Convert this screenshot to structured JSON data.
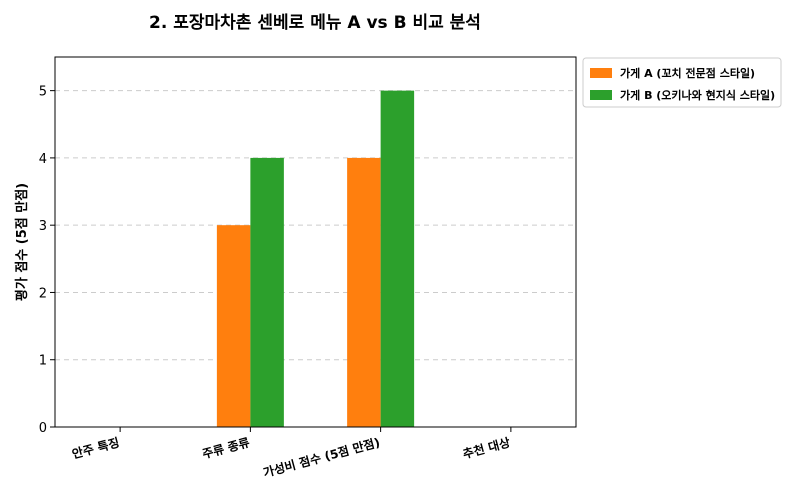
{
  "chart_data": {
    "type": "bar",
    "title": "2. 포장마차촌 센베로 메뉴 A vs B 비교 분석",
    "xlabel": "",
    "ylabel": "평가 점수 (5점 만점)",
    "categories": [
      "안주 특징",
      "주류 종류",
      "가성비 점수  (5점 만점)",
      "추천 대상"
    ],
    "series": [
      {
        "name": "가게 A (꼬치 전문점 스타일)",
        "color": "#ff7f0e",
        "values": [
          0,
          3,
          4,
          0
        ]
      },
      {
        "name": "가게 B (오키나와 현지식 스타일)",
        "color": "#2ca02c",
        "values": [
          0,
          4,
          5,
          0
        ]
      }
    ],
    "ylim": [
      0,
      5.5
    ],
    "yticks": [
      0,
      1,
      2,
      3,
      4,
      5
    ],
    "grid": true,
    "legend_position": "outside-top-right",
    "x_tick_rotation": "slanted"
  }
}
